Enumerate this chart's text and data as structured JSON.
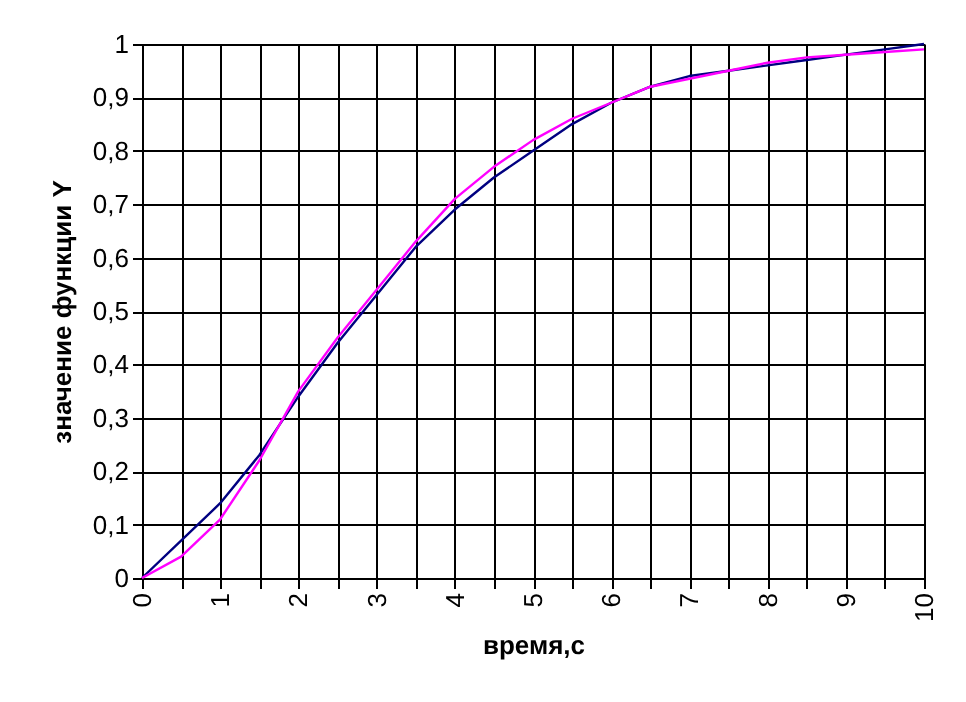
{
  "chart_data": {
    "type": "line",
    "xlabel": "время,с",
    "ylabel": "значение функции Y",
    "x": [
      0,
      0.5,
      1,
      1.5,
      2,
      2.5,
      3,
      3.5,
      4,
      4.5,
      5,
      5.5,
      6,
      6.5,
      7,
      7.5,
      8,
      8.5,
      9,
      9.5,
      10
    ],
    "series": [
      {
        "color": "#000080",
        "values": [
          0,
          0.07,
          0.14,
          0.23,
          0.34,
          0.44,
          0.53,
          0.62,
          0.69,
          0.75,
          0.8,
          0.85,
          0.89,
          0.92,
          0.94,
          0.95,
          0.96,
          0.97,
          0.98,
          0.99,
          1.0
        ]
      },
      {
        "color": "#ff00ff",
        "values": [
          0,
          0.04,
          0.11,
          0.22,
          0.35,
          0.45,
          0.54,
          0.63,
          0.71,
          0.77,
          0.82,
          0.86,
          0.89,
          0.92,
          0.935,
          0.95,
          0.965,
          0.975,
          0.98,
          0.985,
          0.99
        ]
      }
    ],
    "xlim": [
      0,
      10
    ],
    "xticks": [
      0,
      {
        "value": 0.5,
        "label": null
      },
      1,
      {
        "value": 1.5,
        "label": null
      },
      2,
      {
        "value": 2.5,
        "label": null
      },
      3,
      {
        "value": 3.5,
        "label": null
      },
      4,
      {
        "value": 4.5,
        "label": null
      },
      5,
      {
        "value": 5.5,
        "label": null
      },
      6,
      {
        "value": 6.5,
        "label": null
      },
      7,
      {
        "value": 7.5,
        "label": null
      },
      8,
      {
        "value": 8.5,
        "label": null
      },
      9,
      {
        "value": 9.5,
        "label": null
      },
      10
    ],
    "ylim": [
      0,
      1
    ],
    "yticks": [
      0,
      {
        "value": 0.1,
        "label": "0,1"
      },
      {
        "value": 0.2,
        "label": "0,2"
      },
      {
        "value": 0.3,
        "label": "0,3"
      },
      {
        "value": 0.4,
        "label": "0,4"
      },
      {
        "value": 0.5,
        "label": "0,5"
      },
      {
        "value": 0.6,
        "label": "0,6"
      },
      {
        "value": 0.7,
        "label": "0,7"
      },
      {
        "value": 0.8,
        "label": "0,8"
      },
      {
        "value": 0.9,
        "label": "0,9"
      },
      1
    ],
    "grid": true,
    "marker": "none",
    "line_style": "solid"
  }
}
